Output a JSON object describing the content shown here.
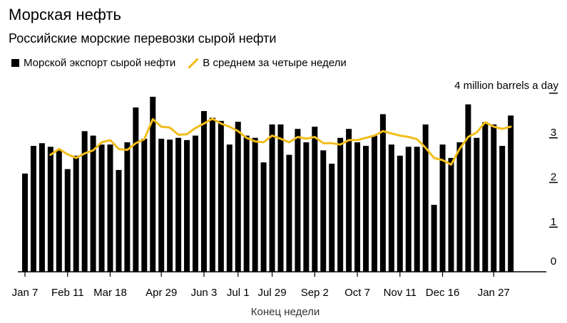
{
  "title": "Морская нефть",
  "subtitle": "Российские морские перевозки сырой нефти",
  "legend": {
    "bars": "Морской экспорт сырой нефти",
    "line": "В среднем за четыре недели"
  },
  "colors": {
    "bars": "#000000",
    "line": "#f2bd1b",
    "axis": "#000000"
  },
  "chart_data": {
    "type": "bar",
    "xlabel": "Конец недели",
    "ylabel": "",
    "unit_label": "4 million barrels a day",
    "ylim": [
      0,
      4
    ],
    "yticks": [
      0,
      1,
      2,
      3
    ],
    "x_tick_labels": [
      "Jan 7",
      "Feb 11",
      "Mar 18",
      "Apr 29",
      "Jun 3",
      "Jul 1",
      "Jul 29",
      "Sep 2",
      "Oct 7",
      "Nov 11",
      "Dec 16",
      "Jan 27"
    ],
    "x_tick_indices": [
      0,
      5,
      10,
      16,
      21,
      25,
      29,
      34,
      39,
      44,
      49,
      55
    ],
    "series": [
      {
        "name": "Морской экспорт сырой нефти",
        "type": "bar",
        "values": [
          2.2,
          2.82,
          2.88,
          2.8,
          2.72,
          2.3,
          2.6,
          3.15,
          3.05,
          2.85,
          2.85,
          2.28,
          2.9,
          3.68,
          2.98,
          3.92,
          2.98,
          2.96,
          3.0,
          2.95,
          3.05,
          3.6,
          3.45,
          3.38,
          2.85,
          3.36,
          3.05,
          3.0,
          2.45,
          3.3,
          3.3,
          2.62,
          3.2,
          2.9,
          3.25,
          2.72,
          2.42,
          3.0,
          3.2,
          2.9,
          2.82,
          3.05,
          3.53,
          2.85,
          2.6,
          2.8,
          2.8,
          3.3,
          1.5,
          2.85,
          2.55,
          2.9,
          3.75,
          3.0,
          3.35,
          3.3,
          2.82,
          3.5
        ]
      },
      {
        "name": "В среднем за четыре недели",
        "type": "line",
        "values": [
          null,
          null,
          null,
          2.62,
          2.75,
          2.63,
          2.55,
          2.65,
          2.72,
          2.9,
          2.95,
          2.75,
          2.73,
          2.88,
          2.97,
          3.42,
          3.25,
          3.23,
          3.07,
          3.08,
          3.22,
          3.32,
          3.43,
          3.32,
          3.25,
          3.15,
          3.0,
          2.92,
          2.9,
          3.05,
          2.98,
          2.9,
          3.02,
          2.98,
          3.02,
          2.88,
          2.88,
          2.85,
          2.95,
          2.95,
          3.0,
          3.05,
          3.15,
          3.1,
          3.05,
          3.02,
          2.97,
          2.78,
          2.55,
          2.5,
          2.4,
          2.75,
          3.02,
          3.12,
          3.35,
          3.25,
          3.2,
          3.25
        ]
      }
    ]
  }
}
